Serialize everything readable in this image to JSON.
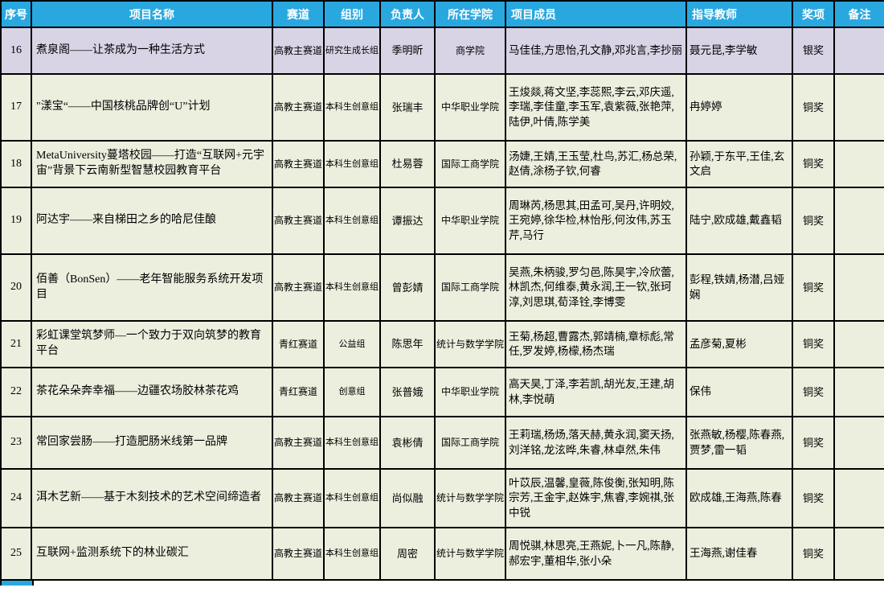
{
  "colors": {
    "header_bg": "#29a8e0",
    "header_text": "#ffffff",
    "row_bg": "#ecefde",
    "highlight_row_bg": "#d9d3e6",
    "border": "#000000",
    "silver_award_label": "银奖",
    "bronze_award_label": "铜奖"
  },
  "table": {
    "columns": [
      {
        "key": "no",
        "label": "序号"
      },
      {
        "key": "name",
        "label": "项目名称"
      },
      {
        "key": "track",
        "label": "赛道"
      },
      {
        "key": "group",
        "label": "组别"
      },
      {
        "key": "leader",
        "label": "负责人"
      },
      {
        "key": "college",
        "label": "所在学院"
      },
      {
        "key": "members",
        "label": "项目成员"
      },
      {
        "key": "advisors",
        "label": "指导教师"
      },
      {
        "key": "award",
        "label": "奖项"
      },
      {
        "key": "remark",
        "label": "备注"
      }
    ],
    "rows": [
      {
        "no": "16",
        "name": "煮泉阁——让茶成为一种生活方式",
        "track": "高教主赛道",
        "group": "研究生成长组",
        "leader": "季明昕",
        "college": "商学院",
        "members": "马佳佳,方思怡,孔文静,邓兆言,李抄丽",
        "advisors": "聂元昆,李学敏",
        "award": "银奖",
        "remark": "",
        "highlight": true
      },
      {
        "no": "17",
        "name": "\"漾宝“——中国核桃品牌创“U”计划",
        "track": "高教主赛道",
        "group": "本科生创意组",
        "leader": "张瑞丰",
        "college": "中华职业学院",
        "members": "王焌燚,蒋文坚,李蕊熙,李云,邓庆遥,李瑞,李佳童,李玉军,袁紫薇,张艳萍,陆伊,叶倩,陈学美",
        "advisors": "冉婷婷",
        "award": "铜奖",
        "remark": "",
        "highlight": false
      },
      {
        "no": "18",
        "name": "MetaUniversity蔓塔校园——打造“互联网+元宇宙”背景下云南新型智慧校园教育平台",
        "track": "高教主赛道",
        "group": "本科生创意组",
        "leader": "杜易蓉",
        "college": "国际工商学院",
        "members": "汤婕,王婧,王玉莹,杜鸟,苏汇,杨总荣,赵倩,涂杨子钦,何睿",
        "advisors": "孙颖,于东平,王佳,玄文启",
        "award": "铜奖",
        "remark": "",
        "highlight": false
      },
      {
        "no": "19",
        "name": "阿达宇——来自梯田之乡的哈尼佳酿",
        "track": "高教主赛道",
        "group": "本科生创意组",
        "leader": "谭振达",
        "college": "中华职业学院",
        "members": "周琳芮,杨思其,田孟可,吴丹,许明姣,王宛婷,徐华检,林怡彤,何汝伟,苏玉芹,马行",
        "advisors": "陆宁,欧成雄,戴鑫韬",
        "award": "铜奖",
        "remark": "",
        "highlight": false
      },
      {
        "no": "20",
        "name": "佰善（BonSen）——老年智能服务系统开发项目",
        "track": "高教主赛道",
        "group": "本科生创意组",
        "leader": "曾彭婧",
        "college": "国际工商学院",
        "members": "吴燕,朱柄骏,罗匀邑,陈昊宇,冷欣蕾,林凯杰,何维泰,黄永润,王一钦,张珂淳,刘思琪,荀泽铨,李博雯",
        "advisors": "彭程,铁婧,杨潜,吕娅娴",
        "award": "铜奖",
        "remark": "",
        "highlight": false
      },
      {
        "no": "21",
        "name": "彩虹课堂筑梦师—一个致力于双向筑梦的教育平台",
        "track": "青红赛道",
        "group": "公益组",
        "leader": "陈思年",
        "college": "统计与数学学院",
        "members": "王菊,杨超,曹露杰,郭靖楠,章标彪,常任,罗发婷,杨檬,杨杰瑞",
        "advisors": "孟彦菊,夏彬",
        "award": "铜奖",
        "remark": "",
        "highlight": false
      },
      {
        "no": "22",
        "name": "茶花朵朵奔幸福——边疆农场胶林茶花鸡",
        "track": "青红赛道",
        "group": "创意组",
        "leader": "张普娥",
        "college": "中华职业学院",
        "members": "高天昊,丁泽,李若凯,胡光友,王建,胡林,李悦萌",
        "advisors": "保伟",
        "award": "铜奖",
        "remark": "",
        "highlight": false
      },
      {
        "no": "23",
        "name": "常回家尝肠——打造肥肠米线第一品牌",
        "track": "高教主赛道",
        "group": "本科生创意组",
        "leader": "袁彬倩",
        "college": "国际工商学院",
        "members": "王莉瑞,杨炀,落天赫,黄永润,窦天扬,刘洋铭,龙泫晔,朱睿,林卓然,朱伟",
        "advisors": "张燕敏,杨樱,陈春燕,贾梦,雷一韬",
        "award": "铜奖",
        "remark": "",
        "highlight": false
      },
      {
        "no": "24",
        "name": "洱木艺新——基于木刻技术的艺术空间缔造者",
        "track": "高教主赛道",
        "group": "本科生创意组",
        "leader": "尚似融",
        "college": "统计与数学学院",
        "members": "叶苡辰,温馨,皇薇,陈俊衡,张知明,陈宗芳,王金宇,赵姝宇,焦睿,李婉祺,张中锐",
        "advisors": "欧成雄,王海燕,陈春",
        "award": "铜奖",
        "remark": "",
        "highlight": false
      },
      {
        "no": "25",
        "name": "互联网+监测系统下的林业碳汇",
        "track": "高教主赛道",
        "group": "本科生创意组",
        "leader": "周密",
        "college": "统计与数学学院",
        "members": "周悦骐,林思亮,王燕妮,卜一凡,陈静,郝宏宇,董相华,张小朵",
        "advisors": "王海燕,谢佳春",
        "award": "铜奖",
        "remark": "",
        "highlight": false
      }
    ]
  }
}
